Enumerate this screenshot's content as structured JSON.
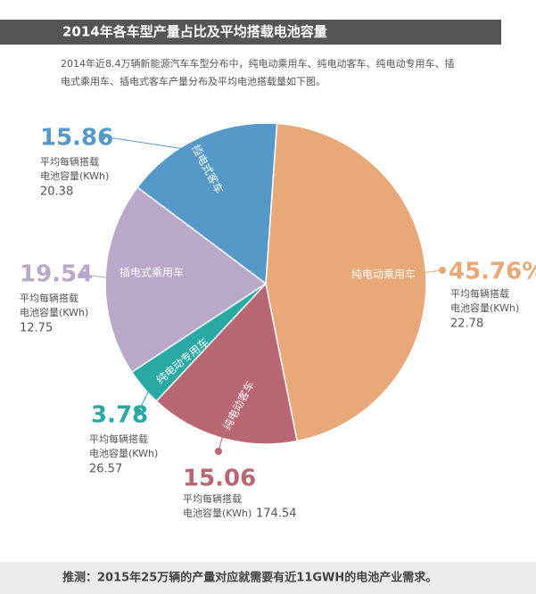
{
  "chart_data": {
    "type": "pie",
    "title": "2014年各车型产量占比及平均搭载电池容量",
    "subtitle_lines": [
      "2014年近8.4万辆新能源汽车车型分布中，纯电动乘用车、纯电动客车、纯电动专用车、插",
      "电式乘用车、插电式客车产量分布及平均电池搭载量如下图。"
    ],
    "categories": [
      "纯电动乘用车",
      "纯电动客车",
      "纯电动专用车",
      "插电式乘用车",
      "插电式客车"
    ],
    "values": [
      45.76,
      15.06,
      3.78,
      19.54,
      15.86
    ],
    "value_labels": [
      "45.76%",
      "15.06",
      "3.78",
      "19.54",
      "15.86"
    ],
    "colors": [
      "#e8a877",
      "#b96873",
      "#2aa9a4",
      "#b8a9cb",
      "#5599c8"
    ],
    "capacity_label_lines": [
      "平均每辆搭载",
      "电池容量(KWh)"
    ],
    "capacity": [
      22.78,
      174.54,
      26.57,
      12.75,
      20.38
    ],
    "note": "推测：2015年25万辆的产量对应就需要有近11GWH的电池产业需求。"
  }
}
